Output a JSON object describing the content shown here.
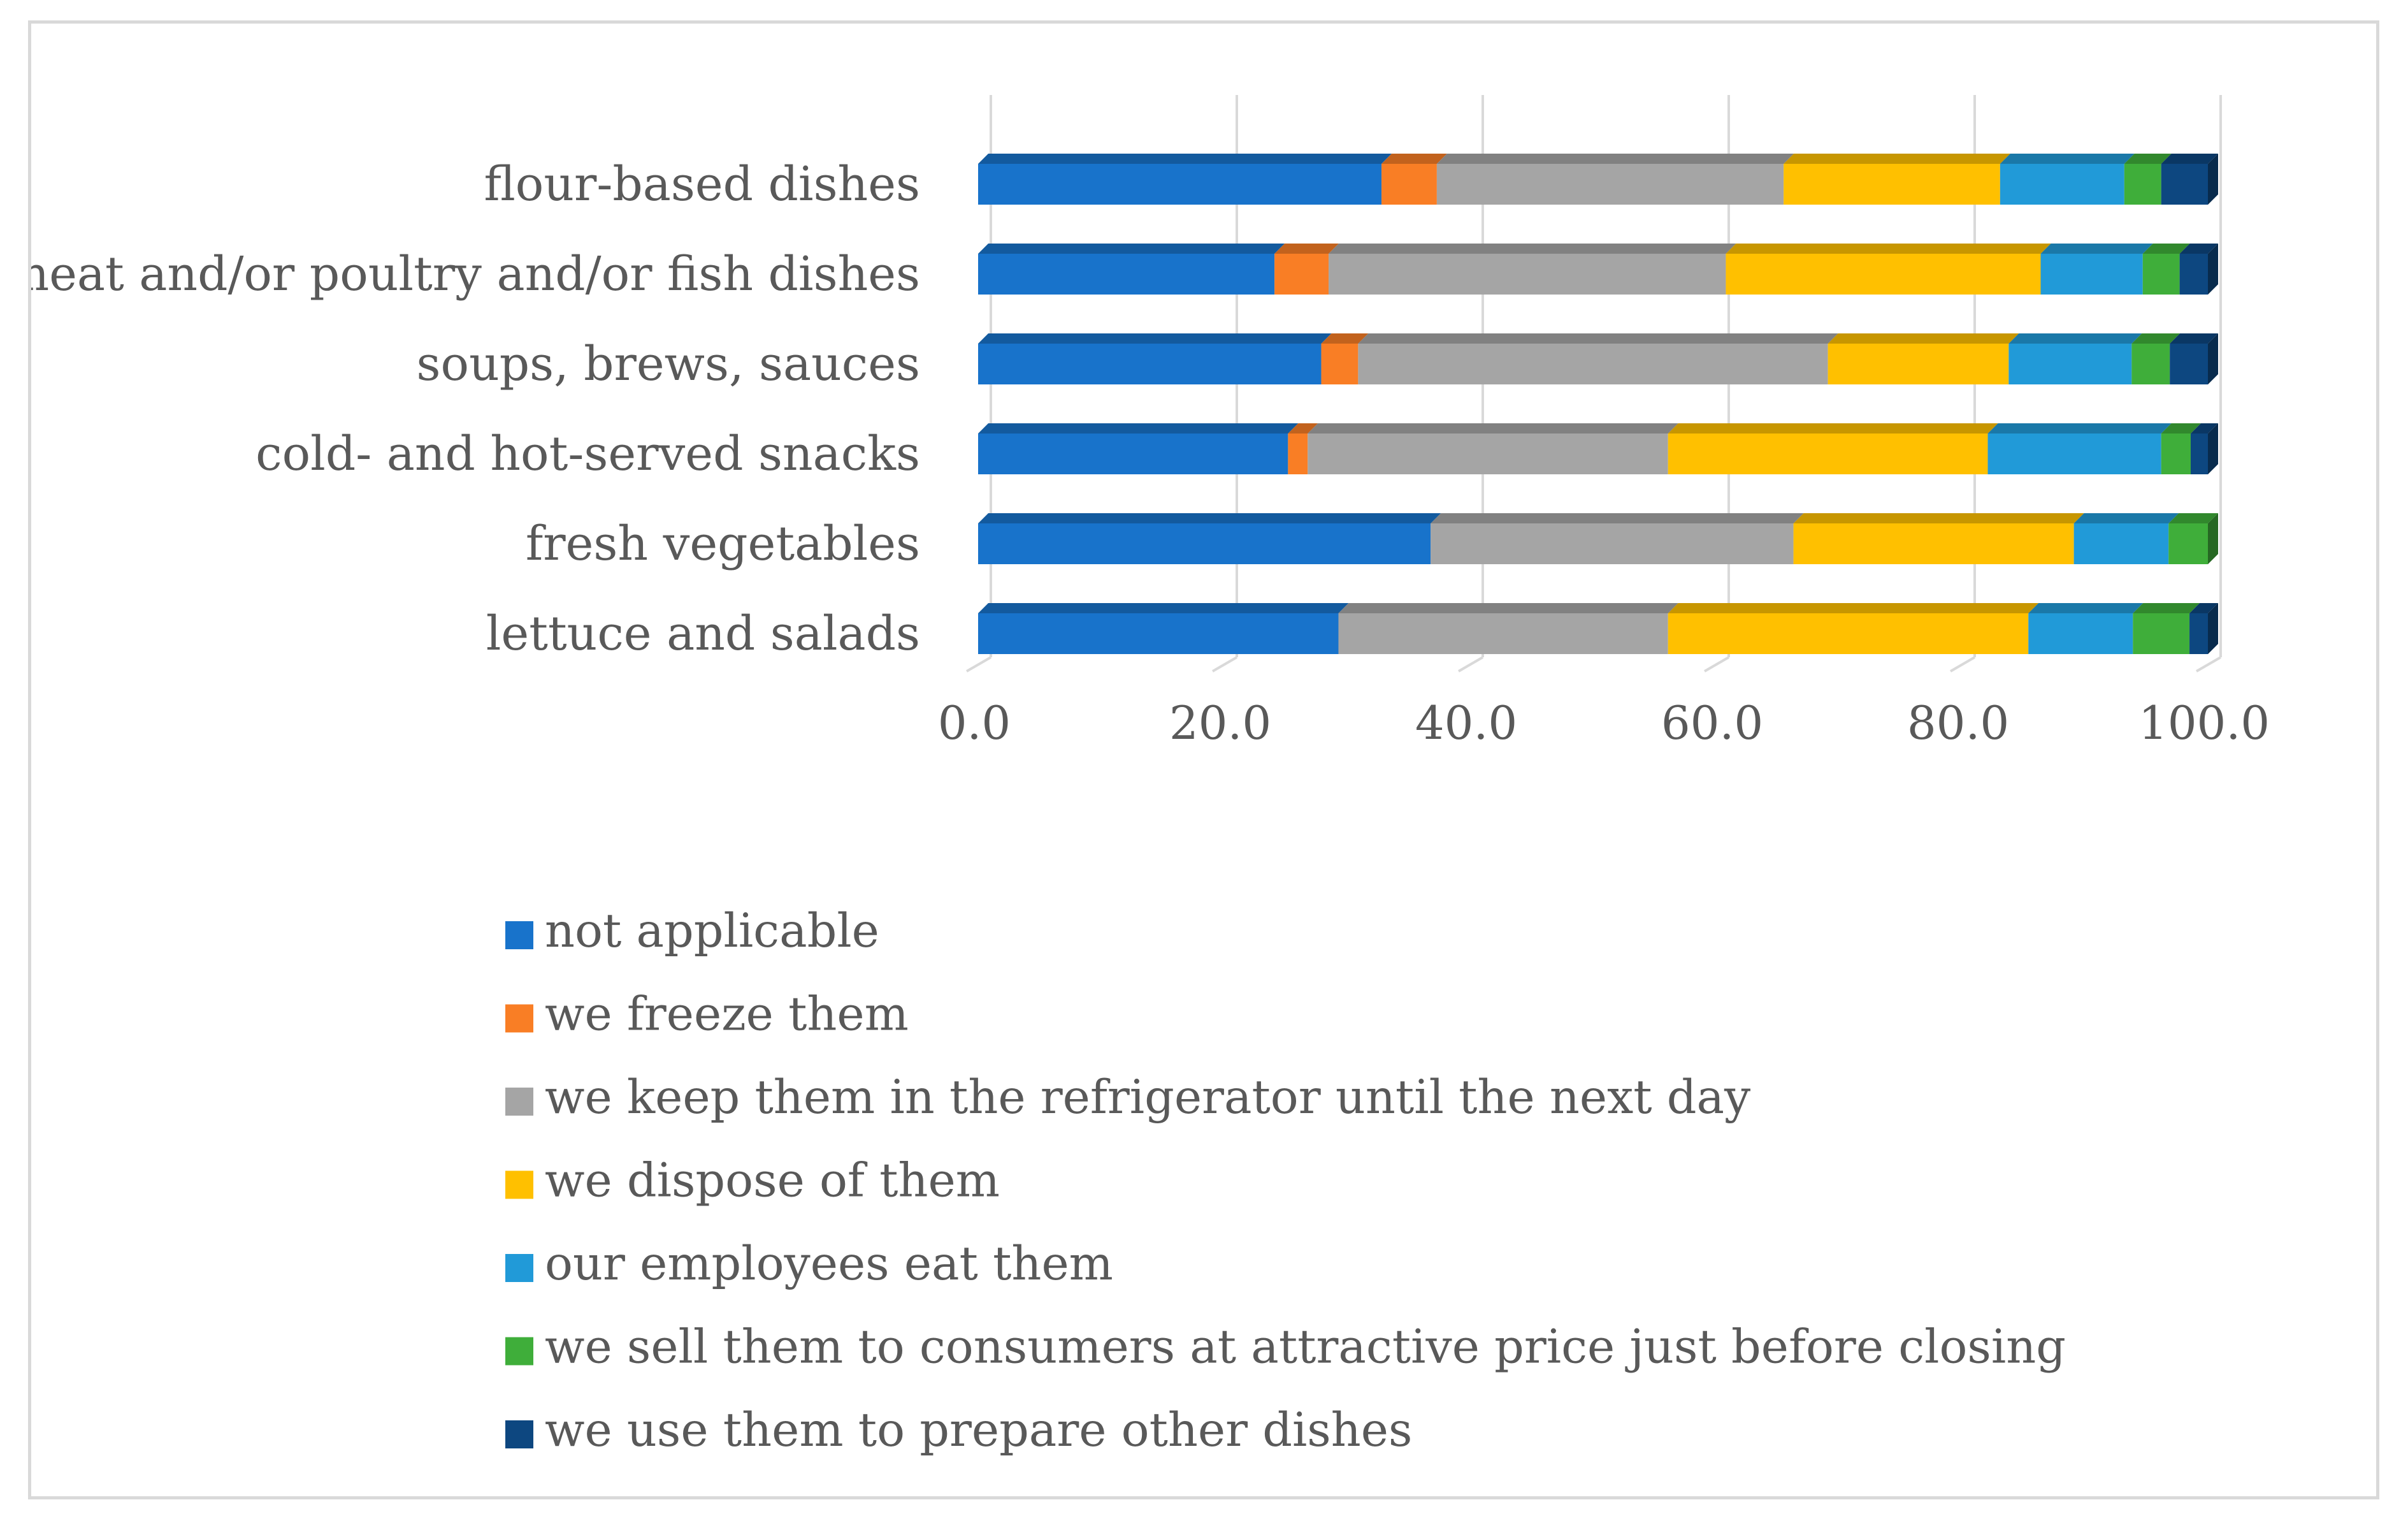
{
  "chart_data": {
    "type": "bar",
    "orientation": "horizontal",
    "stacked": true,
    "style": "3d",
    "title": "",
    "xlabel": "",
    "ylabel": "",
    "xlim": [
      0,
      100
    ],
    "x_ticks": [
      "0.0",
      "20.0",
      "40.0",
      "60.0",
      "80.0",
      "100.0"
    ],
    "x_tick_values": [
      0,
      20,
      40,
      60,
      80,
      100
    ],
    "grid": true,
    "legend_position": "bottom",
    "categories": [
      "flour-based dishes",
      "meat and/or poultry and/or fish dishes",
      "soups, brews, sauces",
      "cold- and hot-served snacks",
      "fresh vegetables",
      "lettuce and salads"
    ],
    "series": [
      {
        "name": " not applicable",
        "color": "#1873cb",
        "values": [
          32.8,
          24.1,
          27.9,
          25.2,
          36.8,
          29.3
        ]
      },
      {
        "name": "we freeze them",
        "color": "#f97e25",
        "values": [
          4.5,
          4.4,
          3.0,
          1.6,
          0.0,
          0.0
        ]
      },
      {
        "name": "we keep them in the refrigerator until the next day",
        "color": "#a5a5a5",
        "values": [
          28.2,
          32.3,
          38.2,
          29.3,
          29.5,
          26.8
        ]
      },
      {
        "name": "we dispose of them",
        "color": "#ffc000",
        "values": [
          17.6,
          25.6,
          14.7,
          26.0,
          22.8,
          29.3
        ]
      },
      {
        "name": "our employees eat them",
        "color": "#219ad8",
        "values": [
          10.1,
          8.3,
          10.0,
          14.1,
          7.7,
          8.5
        ]
      },
      {
        "name": "we sell them to consumers at attractive price just before closing",
        "color": "#3fae3a",
        "values": [
          3.0,
          3.0,
          3.1,
          2.4,
          3.2,
          4.6
        ]
      },
      {
        "name": "we use them to prepare other dishes",
        "color": "#0d4780",
        "values": [
          3.8,
          2.3,
          3.1,
          1.4,
          0.0,
          1.5
        ]
      }
    ]
  }
}
